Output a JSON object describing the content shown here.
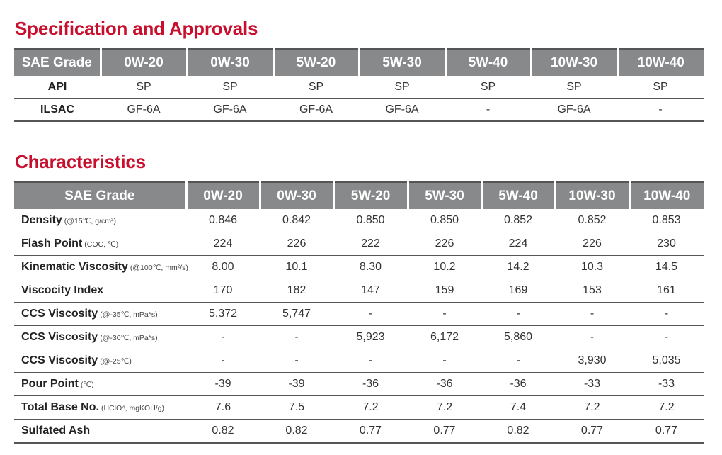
{
  "colors": {
    "title_red": "#c8102e",
    "header_gray": "#87898b"
  },
  "spec": {
    "title": "Specification and Approvals",
    "header_label": "SAE Grade",
    "grades": [
      "0W-20",
      "0W-30",
      "5W-20",
      "5W-30",
      "5W-40",
      "10W-30",
      "10W-40"
    ],
    "rows": [
      {
        "label": "API",
        "values": [
          "SP",
          "SP",
          "SP",
          "SP",
          "SP",
          "SP",
          "SP"
        ]
      },
      {
        "label": "ILSAC",
        "values": [
          "GF-6A",
          "GF-6A",
          "GF-6A",
          "GF-6A",
          "-",
          "GF-6A",
          "-"
        ]
      }
    ]
  },
  "characteristics": {
    "title": "Characteristics",
    "header_label": "SAE Grade",
    "grades": [
      "0W-20",
      "0W-30",
      "5W-20",
      "5W-30",
      "5W-40",
      "10W-30",
      "10W-40"
    ],
    "rows": [
      {
        "label": "Density",
        "condition": "(@15℃, g/cm³)",
        "values": [
          "0.846",
          "0.842",
          "0.850",
          "0.850",
          "0.852",
          "0.852",
          "0.853"
        ]
      },
      {
        "label": "Flash Point",
        "condition": "(COC, ℃)",
        "values": [
          "224",
          "226",
          "222",
          "226",
          "224",
          "226",
          "230"
        ]
      },
      {
        "label": "Kinematic Viscosity",
        "condition": "(@100℃, mm²/s)",
        "values": [
          "8.00",
          "10.1",
          "8.30",
          "10.2",
          "14.2",
          "10.3",
          "14.5"
        ]
      },
      {
        "label": "Viscocity Index",
        "condition": "",
        "values": [
          "170",
          "182",
          "147",
          "159",
          "169",
          "153",
          "161"
        ]
      },
      {
        "label": "CCS Viscosity",
        "condition": "(@-35℃, mPa*s)",
        "values": [
          "5,372",
          "5,747",
          "-",
          "-",
          "-",
          "-",
          "-"
        ]
      },
      {
        "label": "CCS Viscosity",
        "condition": "(@-30℃, mPa*s)",
        "values": [
          "-",
          "-",
          "5,923",
          "6,172",
          "5,860",
          "-",
          "-"
        ]
      },
      {
        "label": "CCS Viscosity",
        "condition": "(@-25℃)",
        "values": [
          "-",
          "-",
          "-",
          "-",
          "-",
          "3,930",
          "5,035"
        ]
      },
      {
        "label": "Pour Point",
        "condition": "(℃)",
        "values": [
          "-39",
          "-39",
          "-36",
          "-36",
          "-36",
          "-33",
          "-33"
        ]
      },
      {
        "label": "Total Base No.",
        "condition": "(HClO⁴, mgKOH/g)",
        "values": [
          "7.6",
          "7.5",
          "7.2",
          "7.2",
          "7.4",
          "7.2",
          "7.2"
        ]
      },
      {
        "label": "Sulfated Ash",
        "condition": "",
        "values": [
          "0.82",
          "0.82",
          "0.77",
          "0.77",
          "0.82",
          "0.77",
          "0.77"
        ]
      }
    ]
  }
}
